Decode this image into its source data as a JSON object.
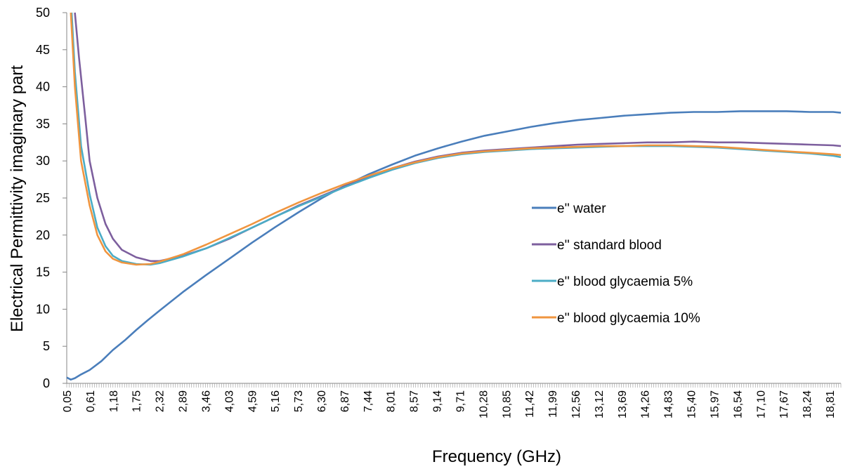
{
  "chart_data": {
    "type": "line",
    "title": "",
    "xlabel": "Frequency (GHz)",
    "ylabel": "Electrical Permittivity imaginary part",
    "ylim": [
      0,
      50
    ],
    "yticks": [
      "0",
      "5",
      "10",
      "15",
      "20",
      "25",
      "30",
      "35",
      "40",
      "45",
      "50"
    ],
    "xlim": [
      0.05,
      19.0
    ],
    "xtick_labels": [
      "0,05",
      "0,61",
      "1,18",
      "1,75",
      "2,32",
      "2,89",
      "3,46",
      "4,03",
      "4,59",
      "5,16",
      "5,73",
      "6,30",
      "6,87",
      "7,44",
      "8,01",
      "8,57",
      "9,14",
      "9,71",
      "10,28",
      "10,85",
      "11,42",
      "11,99",
      "12,56",
      "13,12",
      "13,69",
      "14,26",
      "14,83",
      "15,40",
      "15,97",
      "16,54",
      "17,10",
      "17,67",
      "18,24",
      "18,81"
    ],
    "grid": false,
    "legend_position": "right",
    "colors": {
      "water": "#4A7EBB",
      "standard_blood": "#7D5F9E",
      "glyc5": "#4BACC6",
      "glyc10": "#F0953F"
    },
    "series": [
      {
        "name": "e'' water",
        "color": "#4A7EBB",
        "x": [
          0.05,
          0.15,
          0.25,
          0.4,
          0.61,
          0.9,
          1.18,
          1.47,
          1.75,
          2.03,
          2.32,
          2.89,
          3.46,
          4.03,
          4.59,
          5.16,
          5.73,
          6.3,
          6.87,
          7.44,
          8.01,
          8.57,
          9.14,
          9.71,
          10.28,
          10.85,
          11.42,
          11.99,
          12.56,
          13.12,
          13.69,
          14.26,
          14.83,
          15.4,
          15.97,
          16.54,
          17.1,
          17.67,
          18.24,
          18.81,
          19.0
        ],
        "values": [
          0.8,
          0.5,
          0.7,
          1.2,
          1.8,
          3.0,
          4.5,
          5.8,
          7.2,
          8.5,
          9.8,
          12.3,
          14.6,
          16.8,
          19.0,
          21.1,
          23.1,
          25.0,
          26.7,
          28.2,
          29.5,
          30.7,
          31.7,
          32.6,
          33.4,
          34.0,
          34.6,
          35.1,
          35.5,
          35.8,
          36.1,
          36.3,
          36.5,
          36.6,
          36.6,
          36.7,
          36.7,
          36.7,
          36.6,
          36.6,
          36.5
        ]
      },
      {
        "name": "e'' standard blood",
        "color": "#7D5F9E",
        "x": [
          0.25,
          0.35,
          0.5,
          0.61,
          0.8,
          1.0,
          1.18,
          1.4,
          1.75,
          2.1,
          2.32,
          2.89,
          3.46,
          4.03,
          4.59,
          5.16,
          5.73,
          6.3,
          6.87,
          7.44,
          8.01,
          8.57,
          9.14,
          9.71,
          10.28,
          10.85,
          11.42,
          11.99,
          12.56,
          13.12,
          13.69,
          14.26,
          14.83,
          15.4,
          15.97,
          16.54,
          17.1,
          17.67,
          18.24,
          18.81,
          19.0
        ],
        "values": [
          50,
          44,
          36,
          30,
          25,
          21.5,
          19.5,
          18,
          17,
          16.5,
          16.5,
          17.2,
          18.2,
          19.5,
          21,
          22.5,
          24,
          25.3,
          26.6,
          27.9,
          29,
          29.9,
          30.6,
          31.1,
          31.4,
          31.6,
          31.8,
          32,
          32.2,
          32.3,
          32.4,
          32.5,
          32.5,
          32.6,
          32.5,
          32.5,
          32.4,
          32.3,
          32.2,
          32.1,
          32.0
        ]
      },
      {
        "name": "e'' blood glycaemia 5%",
        "color": "#4BACC6",
        "x": [
          0.17,
          0.25,
          0.4,
          0.61,
          0.8,
          1.0,
          1.18,
          1.4,
          1.75,
          2.1,
          2.32,
          2.89,
          3.46,
          4.03,
          4.59,
          5.16,
          5.73,
          6.3,
          6.87,
          7.44,
          8.01,
          8.57,
          9.14,
          9.71,
          10.28,
          10.85,
          11.42,
          11.99,
          12.56,
          13.12,
          13.69,
          14.26,
          14.83,
          15.4,
          15.97,
          16.54,
          17.1,
          17.67,
          18.24,
          18.81,
          19.0
        ],
        "values": [
          50,
          42,
          32,
          25.5,
          21,
          18.5,
          17.2,
          16.5,
          16.1,
          16.0,
          16.2,
          17.1,
          18.2,
          19.6,
          21,
          22.5,
          23.9,
          25.2,
          26.5,
          27.7,
          28.8,
          29.7,
          30.4,
          30.9,
          31.2,
          31.4,
          31.6,
          31.7,
          31.8,
          31.9,
          32,
          32,
          32,
          31.9,
          31.8,
          31.6,
          31.4,
          31.2,
          31,
          30.7,
          30.5
        ]
      },
      {
        "name": "e'' blood glycaemia 10%",
        "color": "#F0953F",
        "x": [
          0.15,
          0.25,
          0.4,
          0.61,
          0.8,
          1.0,
          1.18,
          1.4,
          1.75,
          2.1,
          2.32,
          2.89,
          3.46,
          4.03,
          4.59,
          5.16,
          5.73,
          6.3,
          6.87,
          7.44,
          8.01,
          8.57,
          9.14,
          9.71,
          10.28,
          10.85,
          11.42,
          11.99,
          12.56,
          13.12,
          13.69,
          14.26,
          14.83,
          15.4,
          15.97,
          16.54,
          17.1,
          17.67,
          18.24,
          18.81,
          19.0
        ],
        "values": [
          50,
          40,
          30,
          24,
          20,
          17.8,
          16.8,
          16.3,
          16.0,
          16.1,
          16.4,
          17.4,
          18.7,
          20.1,
          21.5,
          23,
          24.4,
          25.7,
          26.9,
          28,
          29,
          29.8,
          30.5,
          31,
          31.3,
          31.5,
          31.7,
          31.8,
          31.9,
          32,
          32,
          32.1,
          32.1,
          32,
          31.9,
          31.7,
          31.5,
          31.3,
          31.1,
          30.9,
          30.8
        ]
      }
    ]
  }
}
